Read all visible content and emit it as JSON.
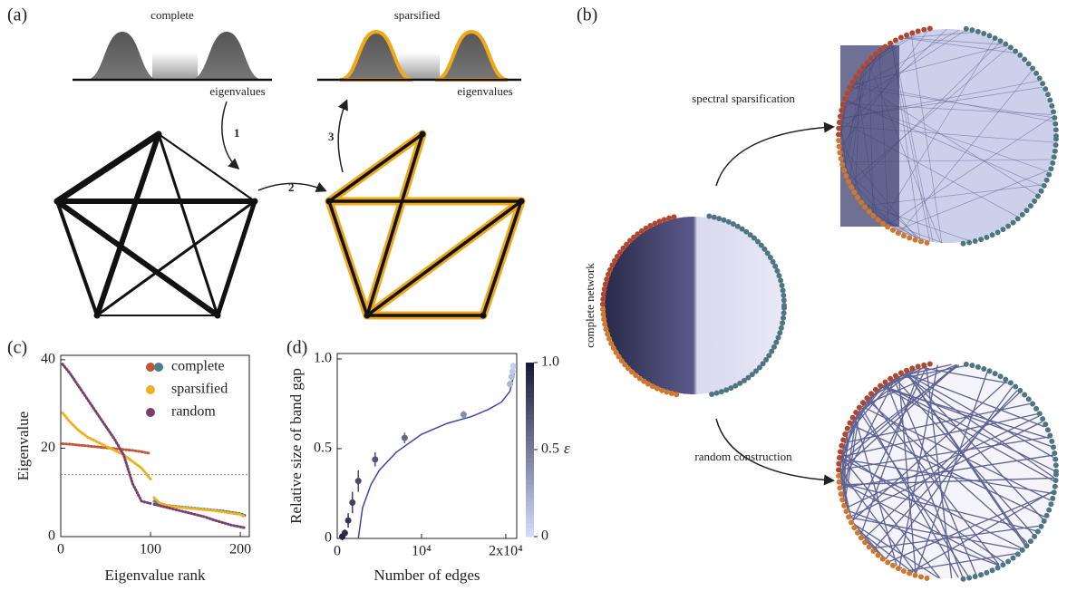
{
  "panel_a": {
    "label": "(a)",
    "left_title": "complete",
    "right_title": "sparsified",
    "left_axis": "eigenvalues",
    "right_axis": "eigenvalues",
    "steps": [
      "1",
      "2",
      "3"
    ]
  },
  "panel_b": {
    "label": "(b)",
    "top_arrow": "spectral sparsification",
    "side_label": "complete network",
    "bottom_arrow": "random construction"
  },
  "chart_data": [
    {
      "type": "line",
      "panel": "(c)",
      "x_label": "Eigenvalue rank",
      "y_label": "Eigenvalue",
      "x": [
        2,
        10,
        20,
        30,
        40,
        50,
        60,
        70,
        80,
        90,
        100,
        102,
        104,
        110,
        120,
        130,
        140,
        150,
        160,
        170,
        180,
        190,
        200,
        205
      ],
      "series": [
        {
          "name": "complete",
          "colors": [
            "#c4553a",
            "#4a7f8e"
          ],
          "values": [
            21,
            20.9,
            20.7,
            20.5,
            20.3,
            20.1,
            19.9,
            19.7,
            19.5,
            19.2,
            18.8,
            null,
            8,
            7.3,
            7,
            6.8,
            6.6,
            6.4,
            6.2,
            6,
            5.8,
            5.5,
            5.2,
            4.8
          ]
        },
        {
          "name": "sparsified",
          "colors": [
            "#eeb020",
            "#eeb020"
          ],
          "values": [
            28,
            26,
            24,
            22.5,
            21.5,
            20.5,
            19.5,
            18.5,
            17,
            15.5,
            13,
            null,
            8.8,
            7.6,
            7,
            6.7,
            6.5,
            6.3,
            6.1,
            5.9,
            5.6,
            5.3,
            5,
            4.5
          ]
        },
        {
          "name": "random",
          "colors": [
            "#7a3f6e",
            "#7a3f6e"
          ],
          "values": [
            39,
            37,
            34,
            31,
            28,
            25,
            22,
            18.5,
            12,
            8,
            7.5,
            null,
            7.3,
            7,
            6.5,
            6,
            5.5,
            5,
            4.5,
            3.8,
            3.2,
            2.6,
            2.2,
            2
          ]
        }
      ],
      "hline": 14,
      "xlim": [
        0,
        210
      ],
      "ylim": [
        0,
        41
      ],
      "xticks": [
        0,
        100,
        200
      ],
      "yticks": [
        0,
        20,
        40
      ]
    },
    {
      "type": "errorbar",
      "panel": "(d)",
      "x_label": "Number of edges",
      "y_label": "Relative size of band gap",
      "x": [
        600,
        900,
        1300,
        1800,
        2500,
        4500,
        8000,
        15000,
        20500,
        20700,
        20800,
        20900
      ],
      "values": [
        0.01,
        0.03,
        0.1,
        0.2,
        0.32,
        0.44,
        0.56,
        0.69,
        0.86,
        0.9,
        0.93,
        0.96
      ],
      "errors": [
        0.02,
        0.02,
        0.04,
        0.06,
        0.06,
        0.04,
        0.03,
        0.02,
        0.02,
        0.02,
        0.02,
        0.02
      ],
      "epsilon": [
        0.95,
        0.9,
        0.85,
        0.8,
        0.75,
        0.7,
        0.6,
        0.4,
        0.2,
        0.15,
        0.1,
        0.05
      ],
      "fit": {
        "color": "#3a48a8",
        "x": [
          2500,
          3000,
          4000,
          5000,
          7000,
          10000,
          13000,
          16000,
          18000,
          19500,
          20500,
          21000
        ],
        "values": [
          0,
          0.17,
          0.3,
          0.38,
          0.48,
          0.58,
          0.64,
          0.68,
          0.72,
          0.76,
          0.82,
          0.92
        ]
      },
      "colorbar": {
        "label": "ε",
        "lim": [
          0,
          1
        ],
        "ticks": [
          0,
          0.5,
          {
            "value": 1,
            "label": "1.0"
          }
        ],
        "colors": [
          "#cfdcfa",
          "#1a1a3a"
        ]
      },
      "xlim": [
        0,
        21300
      ],
      "ylim": [
        0,
        1.03
      ],
      "xticks": [
        0,
        {
          "value": 10000,
          "label": "10⁴"
        },
        {
          "value": 20000,
          "label": "2x10⁴"
        }
      ],
      "yticks": [
        0,
        0.5,
        {
          "value": 1,
          "label": "1.0"
        }
      ]
    }
  ]
}
